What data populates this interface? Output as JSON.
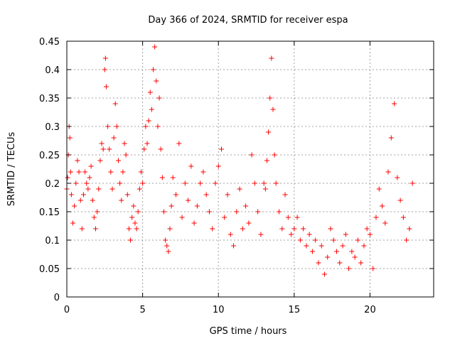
{
  "chart_data": {
    "type": "scatter",
    "title": "Day 366 of 2024, SRMTID for receiver espa",
    "xlabel": "GPS time / hours",
    "ylabel": "SRMTID / TECUs",
    "xlim": [
      0,
      24.2
    ],
    "ylim": [
      0,
      0.45
    ],
    "xticks": [
      0,
      5,
      10,
      15,
      20
    ],
    "xtick_labels": [
      "0",
      "5",
      "10",
      "15",
      "20"
    ],
    "yticks": [
      0,
      0.05,
      0.1,
      0.15,
      0.2,
      0.25,
      0.3,
      0.35,
      0.4,
      0.45
    ],
    "ytick_labels": [
      "0",
      "0.05",
      "0.1",
      "0.15",
      "0.2",
      "0.25",
      "0.3",
      "0.35",
      "0.4",
      "0.45"
    ],
    "grid": true,
    "marker": "plus",
    "color": "#ff0000",
    "series": [
      {
        "name": "SRMTID",
        "x": [
          0.0,
          0.05,
          0.1,
          0.15,
          0.2,
          0.25,
          0.3,
          0.4,
          0.5,
          0.6,
          0.7,
          0.8,
          0.9,
          1.0,
          1.1,
          1.2,
          1.3,
          1.4,
          1.5,
          1.6,
          1.7,
          1.8,
          1.9,
          2.0,
          2.1,
          2.2,
          2.3,
          2.4,
          2.5,
          2.55,
          2.6,
          2.7,
          2.8,
          2.9,
          3.0,
          3.1,
          3.2,
          3.3,
          3.4,
          3.5,
          3.6,
          3.7,
          3.8,
          3.9,
          4.0,
          4.1,
          4.2,
          4.3,
          4.4,
          4.5,
          4.6,
          4.7,
          4.8,
          4.9,
          5.0,
          5.1,
          5.2,
          5.3,
          5.4,
          5.5,
          5.6,
          5.7,
          5.8,
          5.9,
          6.0,
          6.1,
          6.2,
          6.3,
          6.4,
          6.5,
          6.6,
          6.7,
          6.8,
          6.9,
          7.0,
          7.2,
          7.4,
          7.6,
          7.8,
          8.0,
          8.2,
          8.4,
          8.6,
          8.8,
          9.0,
          9.2,
          9.4,
          9.6,
          9.8,
          10.0,
          10.2,
          10.4,
          10.6,
          10.8,
          11.0,
          11.2,
          11.4,
          11.6,
          11.8,
          12.0,
          12.2,
          12.4,
          12.6,
          12.8,
          13.0,
          13.1,
          13.2,
          13.3,
          13.4,
          13.5,
          13.6,
          13.7,
          13.8,
          14.0,
          14.2,
          14.4,
          14.6,
          14.8,
          15.0,
          15.2,
          15.4,
          15.6,
          15.8,
          16.0,
          16.2,
          16.4,
          16.6,
          16.8,
          17.0,
          17.2,
          17.4,
          17.6,
          17.8,
          18.0,
          18.2,
          18.4,
          18.6,
          18.8,
          19.0,
          19.2,
          19.4,
          19.6,
          19.8,
          20.0,
          20.2,
          20.4,
          20.6,
          20.8,
          21.0,
          21.2,
          21.4,
          21.6,
          21.8,
          22.0,
          22.2,
          22.4,
          22.6,
          22.8
        ],
        "y": [
          0.19,
          0.21,
          0.25,
          0.3,
          0.28,
          0.22,
          0.18,
          0.13,
          0.16,
          0.2,
          0.24,
          0.22,
          0.17,
          0.12,
          0.18,
          0.22,
          0.2,
          0.19,
          0.21,
          0.23,
          0.17,
          0.14,
          0.12,
          0.15,
          0.19,
          0.24,
          0.27,
          0.26,
          0.4,
          0.42,
          0.37,
          0.3,
          0.26,
          0.22,
          0.19,
          0.28,
          0.34,
          0.3,
          0.24,
          0.2,
          0.17,
          0.22,
          0.27,
          0.25,
          0.18,
          0.12,
          0.1,
          0.14,
          0.16,
          0.13,
          0.12,
          0.15,
          0.19,
          0.22,
          0.2,
          0.26,
          0.3,
          0.27,
          0.31,
          0.36,
          0.33,
          0.4,
          0.44,
          0.38,
          0.3,
          0.35,
          0.26,
          0.21,
          0.15,
          0.1,
          0.09,
          0.08,
          0.12,
          0.16,
          0.21,
          0.18,
          0.27,
          0.14,
          0.2,
          0.17,
          0.23,
          0.13,
          0.16,
          0.2,
          0.22,
          0.18,
          0.15,
          0.12,
          0.2,
          0.23,
          0.26,
          0.14,
          0.18,
          0.11,
          0.09,
          0.15,
          0.19,
          0.12,
          0.16,
          0.13,
          0.25,
          0.2,
          0.15,
          0.11,
          0.2,
          0.19,
          0.24,
          0.29,
          0.35,
          0.42,
          0.33,
          0.25,
          0.2,
          0.15,
          0.12,
          0.18,
          0.14,
          0.11,
          0.12,
          0.14,
          0.1,
          0.12,
          0.09,
          0.11,
          0.08,
          0.1,
          0.06,
          0.09,
          0.04,
          0.07,
          0.12,
          0.1,
          0.08,
          0.06,
          0.09,
          0.11,
          0.05,
          0.08,
          0.07,
          0.1,
          0.06,
          0.09,
          0.12,
          0.11,
          0.05,
          0.14,
          0.19,
          0.16,
          0.13,
          0.22,
          0.28,
          0.34,
          0.21,
          0.17,
          0.14,
          0.1,
          0.12,
          0.2
        ]
      }
    ]
  }
}
